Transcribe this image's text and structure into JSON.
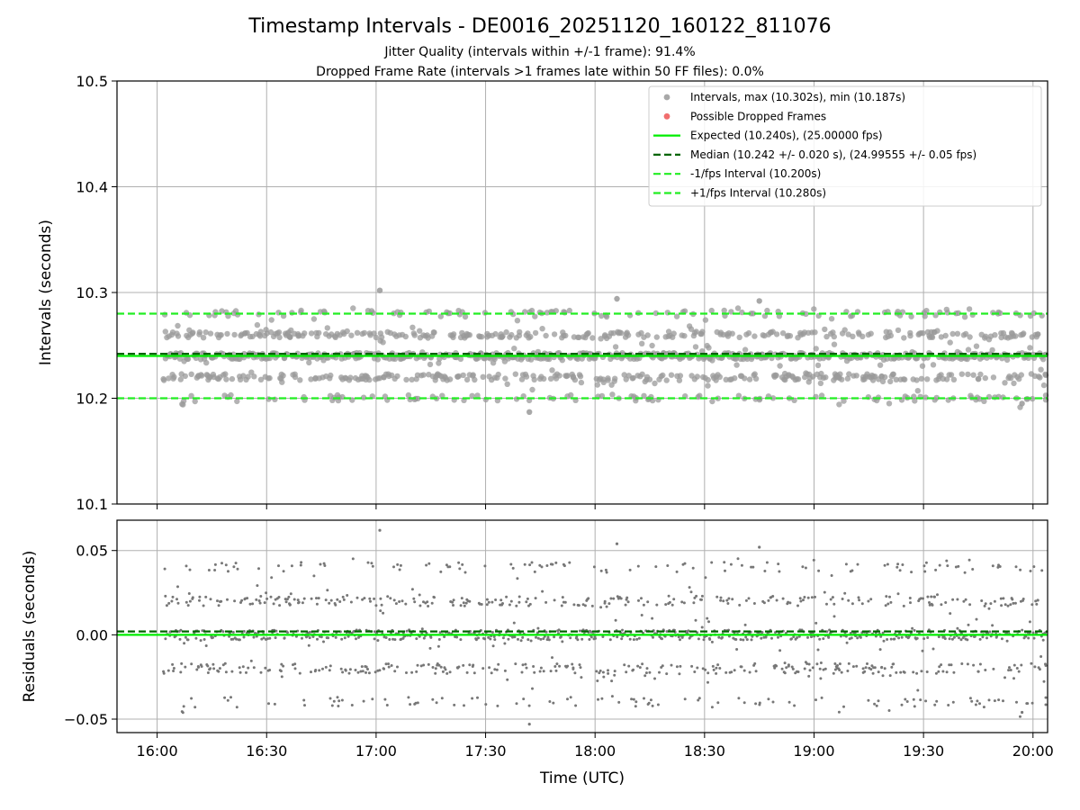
{
  "chart_data": [
    {
      "type": "scatter",
      "title": "Timestamp Intervals - DE0016_20251120_160122_811076",
      "subtitles": [
        "Jitter Quality (intervals within +/-1 frame): 91.4%",
        "Dropped Frame Rate (intervals >1 frames late within 50 FF files): 0.0%"
      ],
      "xlabel": "",
      "ylabel": "Intervals (seconds)",
      "ylim": [
        10.1,
        10.5
      ],
      "yticks": [
        10.1,
        10.2,
        10.3,
        10.4,
        10.5
      ],
      "ytick_labels": [
        "10.1",
        "10.2",
        "10.3",
        "10.4",
        "10.5"
      ],
      "xlim_minutes": [
        -11,
        244
      ],
      "xticks_minutes": [
        0,
        30,
        60,
        90,
        120,
        150,
        180,
        210,
        240
      ],
      "grid": true,
      "legend_position": "top-right",
      "lines": [
        {
          "name": "expected",
          "value": 10.24,
          "style": "solid",
          "color": "#00ee00"
        },
        {
          "name": "median",
          "value": 10.242,
          "style": "dashed",
          "color": "#006400"
        },
        {
          "name": "minus_fps",
          "value": 10.2,
          "style": "dashed",
          "color": "#22ee22"
        },
        {
          "name": "plus_fps",
          "value": 10.28,
          "style": "dashed",
          "color": "#22ee22"
        }
      ],
      "series": {
        "intervals": {
          "name": "Intervals, max (10.302s), min (10.187s)",
          "color": "#999999",
          "count": 1400,
          "x_start_minutes": 1.7,
          "x_end_minutes": 244,
          "levels": [
            10.2,
            10.22,
            10.24,
            10.26,
            10.28
          ],
          "notable_points": [
            {
              "x": 61,
              "y": 10.302
            },
            {
              "x": 102,
              "y": 10.187
            },
            {
              "x": 237,
              "y": 10.195
            },
            {
              "x": 126,
              "y": 10.294
            },
            {
              "x": 165,
              "y": 10.292
            }
          ]
        },
        "dropped": {
          "name": "Possible Dropped Frames",
          "color": "#ee5555",
          "count": 0
        }
      },
      "legend": [
        {
          "label": "Intervals, max (10.302s), min (10.187s)",
          "marker": "dot",
          "color": "#999999"
        },
        {
          "label": "Possible Dropped Frames",
          "marker": "dot",
          "color": "#ee5555"
        },
        {
          "label": "Expected (10.240s), (25.00000 fps)",
          "marker": "line-solid",
          "color": "#00ee00"
        },
        {
          "label": "Median (10.242 +/- 0.020 s), (24.99555 +/- 0.05 fps)",
          "marker": "line-dashed",
          "color": "#006400"
        },
        {
          "label": "-1/fps Interval (10.200s)",
          "marker": "line-dashed",
          "color": "#22ee22"
        },
        {
          "label": "+1/fps Interval (10.280s)",
          "marker": "line-dashed",
          "color": "#22ee22"
        }
      ]
    },
    {
      "type": "scatter",
      "title": "",
      "xlabel": "Time (UTC)",
      "ylabel": "Residuals (seconds)",
      "ylim": [
        -0.058,
        0.068
      ],
      "yticks": [
        -0.05,
        0.0,
        0.05
      ],
      "ytick_labels": [
        "−0.05",
        "0.00",
        "0.05"
      ],
      "xlim_minutes": [
        -11,
        244
      ],
      "xticks_minutes": [
        0,
        30,
        60,
        90,
        120,
        150,
        180,
        210,
        240
      ],
      "xtick_labels": [
        "16:00",
        "16:30",
        "17:00",
        "17:30",
        "18:00",
        "18:30",
        "19:00",
        "19:30",
        "20:00"
      ],
      "grid": true,
      "lines": [
        {
          "name": "expected",
          "value": 0.0,
          "style": "solid",
          "color": "#00ee00"
        },
        {
          "name": "median",
          "value": 0.002,
          "style": "dashed",
          "color": "#006400"
        }
      ],
      "series": {
        "residuals": {
          "name": "Residuals",
          "color": "#777777",
          "count": 1400,
          "levels": [
            -0.04,
            -0.02,
            0.0,
            0.02,
            0.04
          ],
          "notable_points": [
            {
              "x": 61,
              "y": 0.062
            },
            {
              "x": 102,
              "y": -0.053
            },
            {
              "x": 237,
              "y": -0.046
            },
            {
              "x": 126,
              "y": 0.054
            },
            {
              "x": 165,
              "y": 0.052
            }
          ]
        }
      }
    }
  ]
}
